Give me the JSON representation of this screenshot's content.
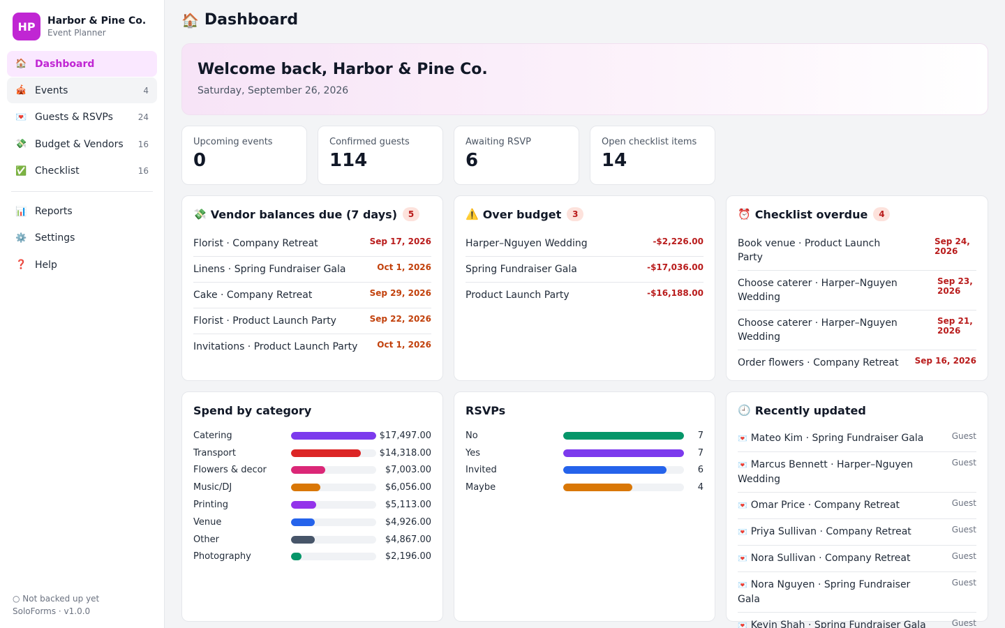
{
  "sidebar": {
    "logo": "HP",
    "brand_name": "Harbor & Pine Co.",
    "brand_sub": "Event Planner",
    "items": [
      {
        "icon": "🏠",
        "label": "Dashboard",
        "count": ""
      },
      {
        "icon": "🎪",
        "label": "Events",
        "count": "4"
      },
      {
        "icon": "💌",
        "label": "Guests & RSVPs",
        "count": "24"
      },
      {
        "icon": "💸",
        "label": "Budget & Vendors",
        "count": "16"
      },
      {
        "icon": "✅",
        "label": "Checklist",
        "count": "16"
      }
    ],
    "items2": [
      {
        "icon": "📊",
        "label": "Reports"
      },
      {
        "icon": "⚙️",
        "label": "Settings"
      },
      {
        "icon": "❓",
        "label": "Help"
      }
    ],
    "backup_status": "○ Not backed up yet",
    "version": "SoloForms · v1.0.0"
  },
  "header": {
    "icon": "🏠",
    "title": "Dashboard"
  },
  "welcome": {
    "title": "Welcome back, Harbor & Pine Co.",
    "date": "Saturday, September 26, 2026"
  },
  "stats": [
    {
      "label": "Upcoming events",
      "value": "0"
    },
    {
      "label": "Confirmed guests",
      "value": "114"
    },
    {
      "label": "Awaiting RSVP",
      "value": "6"
    },
    {
      "label": "Open checklist items",
      "value": "14"
    }
  ],
  "vendor_balances": {
    "icon": "💸",
    "title": "Vendor balances due (7 days)",
    "badge": "5",
    "rows": [
      {
        "label": "Florist · Company Retreat",
        "date": "Sep 17, 2026"
      },
      {
        "label": "Linens · Spring Fundraiser Gala",
        "date": "Oct 1, 2026"
      },
      {
        "label": "Cake · Company Retreat",
        "date": "Sep 29, 2026"
      },
      {
        "label": "Florist · Product Launch Party",
        "date": "Sep 22, 2026"
      },
      {
        "label": "Invitations · Product Launch Party",
        "date": "Oct 1, 2026"
      }
    ]
  },
  "over_budget": {
    "icon": "⚠️",
    "title": "Over budget",
    "badge": "3",
    "rows": [
      {
        "label": "Harper–Nguyen Wedding",
        "amount": "-$2,226.00"
      },
      {
        "label": "Spring Fundraiser Gala",
        "amount": "-$17,036.00"
      },
      {
        "label": "Product Launch Party",
        "amount": "-$16,188.00"
      }
    ]
  },
  "checklist_overdue": {
    "icon": "⏰",
    "title": "Checklist overdue",
    "badge": "4",
    "rows": [
      {
        "label": "Book venue · Product Launch Party",
        "date": "Sep 24, 2026"
      },
      {
        "label": "Choose caterer · Harper–Nguyen Wedding",
        "date": "Sep 23, 2026"
      },
      {
        "label": "Choose caterer · Harper–Nguyen Wedding",
        "date": "Sep 21, 2026"
      },
      {
        "label": "Order flowers · Company Retreat",
        "date": "Sep 16, 2026"
      }
    ]
  },
  "spend": {
    "title": "Spend by category",
    "max": 17497,
    "rows": [
      {
        "label": "Catering",
        "value": 17497,
        "display": "$17,497.00",
        "color": "#7c3aed"
      },
      {
        "label": "Transport",
        "value": 14318,
        "display": "$14,318.00",
        "color": "#dc2626"
      },
      {
        "label": "Flowers & decor",
        "value": 7003,
        "display": "$7,003.00",
        "color": "#db2777"
      },
      {
        "label": "Music/DJ",
        "value": 6056,
        "display": "$6,056.00",
        "color": "#d97706"
      },
      {
        "label": "Printing",
        "value": 5113,
        "display": "$5,113.00",
        "color": "#9333ea"
      },
      {
        "label": "Venue",
        "value": 4926,
        "display": "$4,926.00",
        "color": "#2563eb"
      },
      {
        "label": "Other",
        "value": 4867,
        "display": "$4,867.00",
        "color": "#475569"
      },
      {
        "label": "Photography",
        "value": 2196,
        "display": "$2,196.00",
        "color": "#059669"
      }
    ]
  },
  "rsvps": {
    "title": "RSVPs",
    "max": 7,
    "rows": [
      {
        "label": "No",
        "value": 7,
        "display": "7",
        "color": "#059669"
      },
      {
        "label": "Yes",
        "value": 7,
        "display": "7",
        "color": "#7c3aed"
      },
      {
        "label": "Invited",
        "value": 6,
        "display": "6",
        "color": "#2563eb"
      },
      {
        "label": "Maybe",
        "value": 4,
        "display": "4",
        "color": "#d97706"
      }
    ]
  },
  "recent": {
    "icon": "🕘",
    "title": "Recently updated",
    "rows": [
      {
        "icon": "💌",
        "label": "Mateo Kim · Spring Fundraiser Gala",
        "type": "Guest"
      },
      {
        "icon": "💌",
        "label": "Marcus Bennett · Harper–Nguyen Wedding",
        "type": "Guest"
      },
      {
        "icon": "💌",
        "label": "Omar Price · Company Retreat",
        "type": "Guest"
      },
      {
        "icon": "💌",
        "label": "Priya Sullivan · Company Retreat",
        "type": "Guest"
      },
      {
        "icon": "💌",
        "label": "Nora Sullivan · Company Retreat",
        "type": "Guest"
      },
      {
        "icon": "💌",
        "label": "Nora Nguyen · Spring Fundraiser Gala",
        "type": "Guest"
      },
      {
        "icon": "💌",
        "label": "Kevin Shah · Spring Fundraiser Gala",
        "type": "Guest"
      }
    ]
  }
}
